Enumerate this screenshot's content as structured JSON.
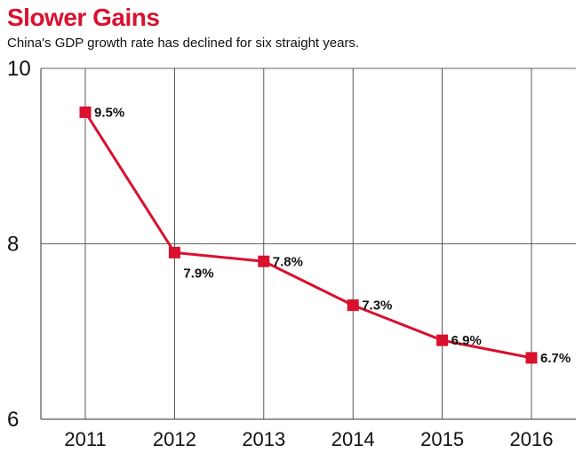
{
  "header": {
    "title": "Slower Gains",
    "subtitle": "China's GDP growth rate has declined for six straight years."
  },
  "colors": {
    "accent": "#d9112f",
    "gridline": "#333333",
    "text": "#111111"
  },
  "chart_data": {
    "type": "line",
    "title": "Slower Gains",
    "subtitle": "China's GDP growth rate has declined for six straight years.",
    "xlabel": "",
    "ylabel": "",
    "categories": [
      "2011",
      "2012",
      "2013",
      "2014",
      "2015",
      "2016"
    ],
    "series": [
      {
        "values": [
          9.5,
          7.9,
          7.8,
          7.3,
          6.9,
          6.7
        ],
        "labels": [
          "9.5%",
          "7.9%",
          "7.8%",
          "7.3%",
          "6.9%",
          "6.7%"
        ]
      }
    ],
    "ylim": [
      6,
      10
    ],
    "yticks": [
      "10",
      "8",
      "6"
    ],
    "ytick_values": [
      10,
      8,
      6
    ],
    "grid": true,
    "legend": "none"
  }
}
